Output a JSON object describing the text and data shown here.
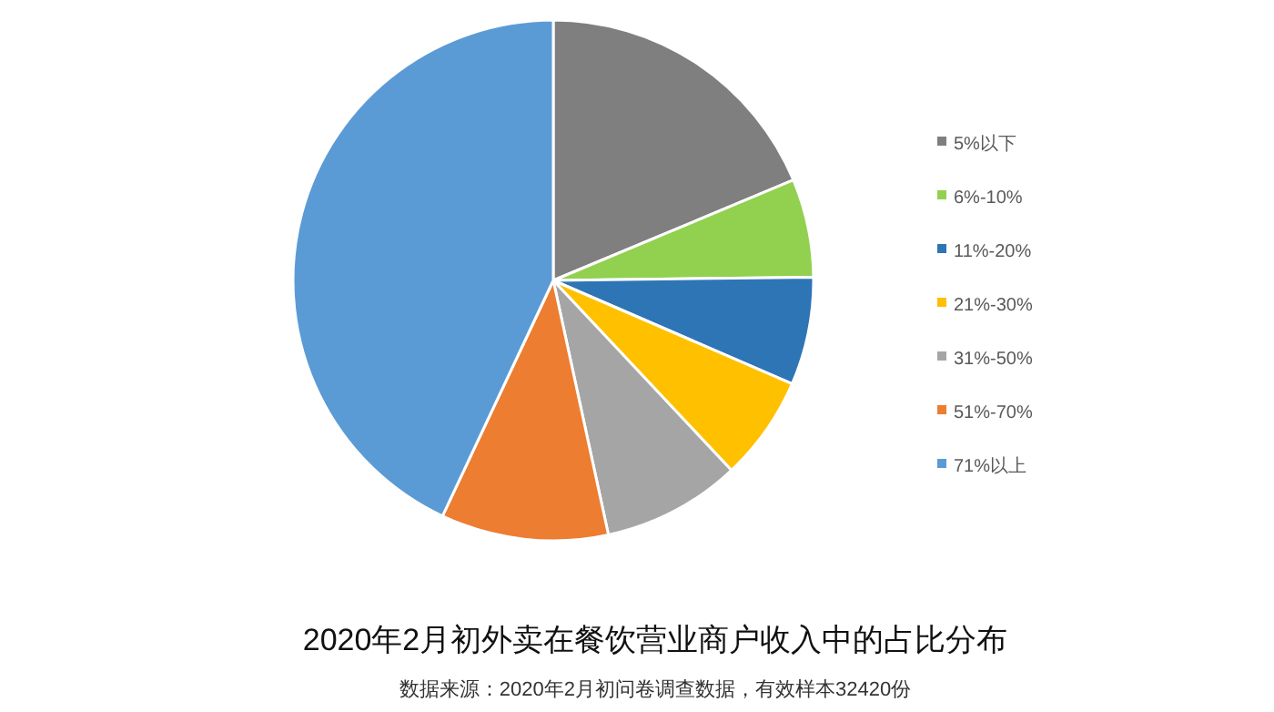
{
  "chart_data": {
    "type": "pie",
    "title": "2020年2月初外卖在餐饮营业商户收入中的占比分布",
    "annotations": [
      "数据来源：2020年2月初问卷调查数据，有效样本32420份"
    ],
    "categories": [
      "5%以下",
      "6%-10%",
      "11%-20%",
      "21%-30%",
      "31%-50%",
      "51%-70%",
      "71%以上"
    ],
    "values": [
      18.7,
      6.1,
      6.7,
      6.5,
      8.6,
      10.4,
      43.0
    ],
    "colors": [
      "#7f7f7f",
      "#92d050",
      "#2e75b6",
      "#ffc000",
      "#a5a5a5",
      "#ed7d31",
      "#5b9bd5"
    ],
    "legend": "right"
  }
}
